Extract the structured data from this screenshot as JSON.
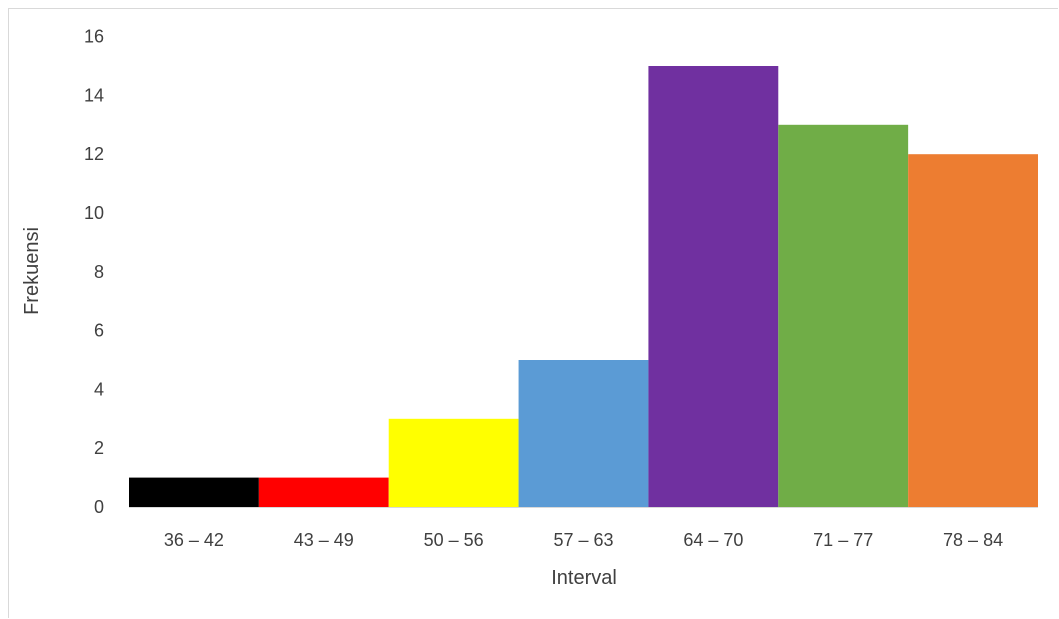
{
  "chart_data": {
    "type": "bar",
    "title": "",
    "xlabel": "Interval",
    "ylabel": "Frekuensi",
    "categories": [
      "36 – 42",
      "43 – 49",
      "50 – 56",
      "57 – 63",
      "64 – 70",
      "71 – 77",
      "78 – 84"
    ],
    "values": [
      1,
      1,
      3,
      5,
      15,
      13,
      12
    ],
    "colors": [
      "#000000",
      "#ff0000",
      "#ffff00",
      "#5b9bd5",
      "#7030a0",
      "#70ad47",
      "#ed7d31"
    ],
    "ylim": [
      0,
      16
    ],
    "yticks": [
      0,
      2,
      4,
      6,
      8,
      10,
      12,
      14,
      16
    ],
    "grid": false,
    "legend": "none"
  }
}
